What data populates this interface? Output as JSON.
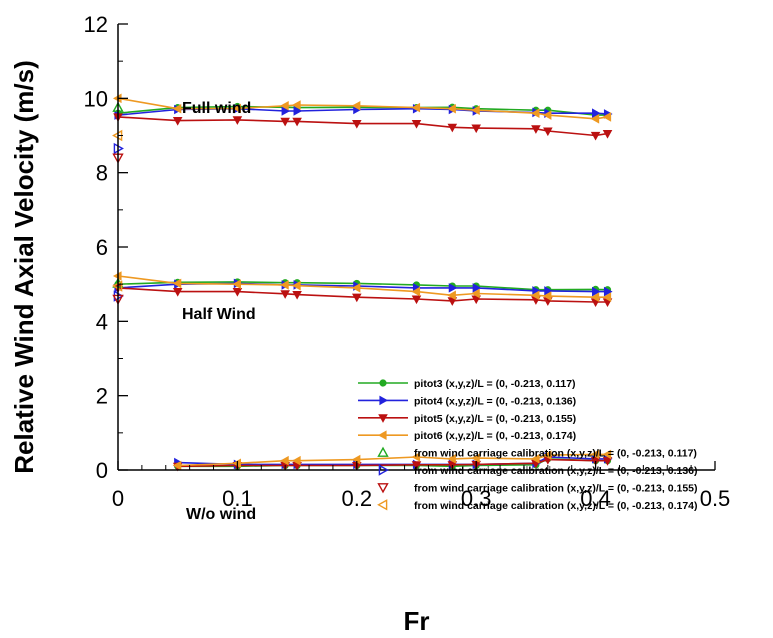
{
  "chart_data": {
    "type": "line",
    "xlabel": "Fr",
    "ylabel": "Relative Wind Axial Velocity (m/s)",
    "xlim": [
      0,
      0.5
    ],
    "ylim": [
      0,
      12
    ],
    "x_ticks": [
      "0",
      "0.1",
      "0.2",
      "0.3",
      "0.4",
      "0.5"
    ],
    "y_ticks": [
      "0",
      "2",
      "4",
      "6",
      "8",
      "10",
      "12"
    ],
    "grid": false,
    "legend_position": "lower-right",
    "annotations": [
      {
        "text": "Full wind",
        "x": 0.0,
        "y": 0.0
      },
      {
        "text": "Half Wind",
        "x": 0.0,
        "y": 0.0
      },
      {
        "text": "W/o wind",
        "x": 0.0,
        "y": 0.0
      }
    ],
    "series": [
      {
        "name": "pitot3 (x,y,z)/L = (0, -0.213, 0.117)",
        "color": "#22aa22",
        "marker": "circle",
        "style": "line",
        "groups": [
          {
            "x": [
              0,
              0.05,
              0.1,
              0.14,
              0.15,
              0.2,
              0.25,
              0.28,
              0.3,
              0.35,
              0.36,
              0.4,
              0.41
            ],
            "y": [
              9.6,
              9.75,
              9.78,
              9.76,
              9.75,
              9.76,
              9.75,
              9.76,
              9.72,
              9.68,
              9.68,
              9.55,
              9.55
            ]
          },
          {
            "x": [
              0,
              0.05,
              0.1,
              0.14,
              0.15,
              0.2,
              0.25,
              0.28,
              0.3,
              0.35,
              0.36,
              0.4,
              0.41
            ],
            "y": [
              5.0,
              5.05,
              5.06,
              5.04,
              5.04,
              5.02,
              4.98,
              4.95,
              4.95,
              4.85,
              4.85,
              4.86,
              4.85
            ]
          },
          {
            "x": [
              0.05,
              0.1,
              0.14,
              0.15,
              0.2,
              0.25,
              0.28,
              0.3,
              0.35,
              0.36,
              0.4,
              0.41
            ],
            "y": [
              0.1,
              0.1,
              0.12,
              0.12,
              0.12,
              0.12,
              0.1,
              0.12,
              0.14,
              0.3,
              0.25,
              0.25
            ]
          }
        ]
      },
      {
        "name": "pitot4 (x,y,z)/L = (0, -0.213, 0.136)",
        "color": "#2222dd",
        "marker": "triangle-right",
        "style": "line",
        "groups": [
          {
            "x": [
              0,
              0.05,
              0.1,
              0.14,
              0.15,
              0.2,
              0.25,
              0.28,
              0.3,
              0.35,
              0.36,
              0.4,
              0.41
            ],
            "y": [
              9.55,
              9.7,
              9.72,
              9.66,
              9.66,
              9.7,
              9.72,
              9.7,
              9.66,
              9.62,
              9.6,
              9.6,
              9.58
            ]
          },
          {
            "x": [
              0,
              0.05,
              0.1,
              0.14,
              0.15,
              0.2,
              0.25,
              0.28,
              0.3,
              0.35,
              0.36,
              0.4,
              0.41
            ],
            "y": [
              4.9,
              5.0,
              5.02,
              4.98,
              4.98,
              4.95,
              4.9,
              4.9,
              4.9,
              4.82,
              4.82,
              4.8,
              4.8
            ]
          },
          {
            "x": [
              0.05,
              0.1,
              0.14,
              0.15,
              0.2,
              0.25,
              0.28,
              0.3,
              0.35,
              0.36,
              0.4,
              0.41
            ],
            "y": [
              0.2,
              0.15,
              0.15,
              0.15,
              0.15,
              0.15,
              0.15,
              0.15,
              0.18,
              0.35,
              0.3,
              0.3
            ]
          }
        ]
      },
      {
        "name": "pitot5 (x,y,z)/L = (0, -0.213, 0.155)",
        "color": "#bb1111",
        "marker": "triangle-down",
        "style": "line",
        "groups": [
          {
            "x": [
              0,
              0.05,
              0.1,
              0.14,
              0.15,
              0.2,
              0.25,
              0.28,
              0.3,
              0.35,
              0.36,
              0.4,
              0.41
            ],
            "y": [
              9.5,
              9.4,
              9.42,
              9.38,
              9.38,
              9.32,
              9.32,
              9.22,
              9.2,
              9.18,
              9.12,
              9.0,
              9.05
            ]
          },
          {
            "x": [
              0,
              0.05,
              0.1,
              0.14,
              0.15,
              0.2,
              0.25,
              0.28,
              0.3,
              0.35,
              0.36,
              0.4,
              0.41
            ],
            "y": [
              4.9,
              4.8,
              4.8,
              4.74,
              4.72,
              4.65,
              4.6,
              4.55,
              4.6,
              4.58,
              4.55,
              4.52,
              4.52
            ]
          },
          {
            "x": [
              0.05,
              0.1,
              0.14,
              0.15,
              0.2,
              0.25,
              0.28,
              0.3,
              0.35,
              0.36,
              0.4,
              0.41
            ],
            "y": [
              0.1,
              0.12,
              0.12,
              0.12,
              0.12,
              0.14,
              0.14,
              0.15,
              0.18,
              0.28,
              0.25,
              0.25
            ]
          }
        ]
      },
      {
        "name": "pitot6 (x,y,z)/L = (0, -0.213, 0.174)",
        "color": "#ee9922",
        "marker": "triangle-left",
        "style": "line",
        "groups": [
          {
            "x": [
              0,
              0.05,
              0.1,
              0.14,
              0.15,
              0.2,
              0.25,
              0.28,
              0.3,
              0.35,
              0.36,
              0.4,
              0.41
            ],
            "y": [
              10.0,
              9.72,
              9.73,
              9.8,
              9.82,
              9.8,
              9.75,
              9.72,
              9.68,
              9.6,
              9.55,
              9.45,
              9.5
            ]
          },
          {
            "x": [
              0,
              0.05,
              0.1,
              0.14,
              0.15,
              0.2,
              0.25,
              0.28,
              0.3,
              0.35,
              0.36,
              0.4,
              0.41
            ],
            "y": [
              5.22,
              5.02,
              5.0,
              4.98,
              4.96,
              4.9,
              4.8,
              4.7,
              4.75,
              4.7,
              4.68,
              4.65,
              4.65
            ]
          },
          {
            "x": [
              0.05,
              0.1,
              0.14,
              0.15,
              0.2,
              0.25,
              0.28,
              0.3,
              0.35,
              0.36,
              0.4,
              0.41
            ],
            "y": [
              0.12,
              0.18,
              0.25,
              0.25,
              0.28,
              0.35,
              0.3,
              0.32,
              0.3,
              0.4,
              0.42,
              0.42
            ]
          }
        ]
      },
      {
        "name": "from wind carriage calibration (x,y,z)/L = (0, -0.213, 0.117)",
        "color": "#22aa22",
        "marker": "triangle-up",
        "style": "markers",
        "points": [
          {
            "x": 0,
            "y": 9.75
          },
          {
            "x": 0,
            "y": 5.02
          }
        ]
      },
      {
        "name": "from wind carriage calibration (x,y,z)/L = (0, -0.213, 0.136)",
        "color": "#2222dd",
        "marker": "triangle-right",
        "style": "markers",
        "points": [
          {
            "x": 0,
            "y": 8.65
          },
          {
            "x": 0,
            "y": 4.68
          }
        ]
      },
      {
        "name": "from wind carriage calibration (x,y,z)/L = (0, -0.213, 0.155)",
        "color": "#bb1111",
        "marker": "triangle-down",
        "style": "markers",
        "points": [
          {
            "x": 0,
            "y": 8.4
          },
          {
            "x": 0,
            "y": 4.6
          }
        ]
      },
      {
        "name": "from wind carriage calibration (x,y,z)/L = (0, -0.213, 0.174)",
        "color": "#ee9922",
        "marker": "triangle-left",
        "style": "markers",
        "points": [
          {
            "x": 0,
            "y": 9.0
          },
          {
            "x": 0,
            "y": 4.95
          }
        ]
      }
    ]
  }
}
